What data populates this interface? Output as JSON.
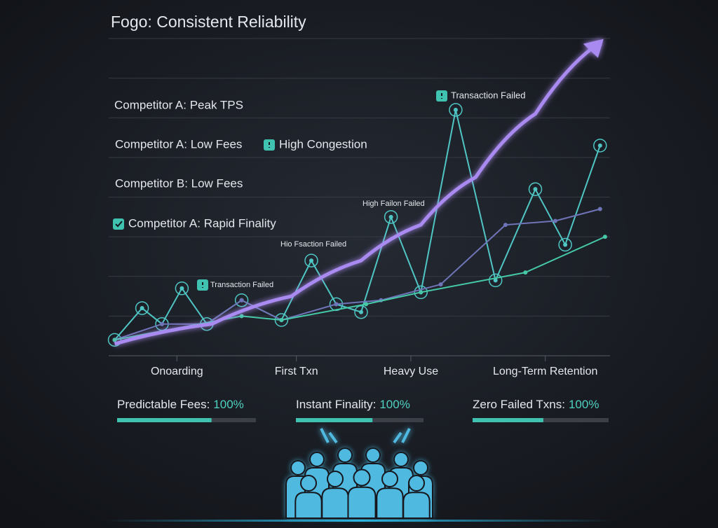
{
  "chart_data": {
    "type": "line",
    "title": "Fogo: Consistent Reliability",
    "xlim": [
      0,
      10
    ],
    "ylim": [
      0,
      8
    ],
    "xticks": [
      {
        "value": 1.3,
        "label": "Onoarding"
      },
      {
        "value": 3.7,
        "label": "First Txn"
      },
      {
        "value": 6,
        "label": "Heavy Use"
      },
      {
        "value": 8.7,
        "label": "Long-Term Retention"
      }
    ],
    "yticks": [
      0,
      1,
      2,
      3,
      4,
      5,
      6,
      7,
      8
    ],
    "grid": true,
    "series": [
      {
        "color": "#4fc6c4",
        "markers": true,
        "x": [
          0.05,
          0.6,
          1,
          1.4,
          1.9,
          2.6,
          3.4,
          4,
          4.5,
          5,
          5.6,
          6.2,
          6.9,
          7.7,
          8.5,
          9.1,
          9.8
        ],
        "values": [
          0.4,
          1.2,
          0.8,
          1.7,
          0.8,
          1.4,
          0.9,
          2.4,
          1.3,
          1.1,
          3.5,
          1.6,
          6.2,
          1.9,
          4.2,
          2.8,
          5.3
        ]
      },
      {
        "color": "#6f74b8",
        "markers": false,
        "x": [
          0.05,
          1,
          1.9,
          2.6,
          3.4,
          4.5,
          5.4,
          6.6,
          7.9,
          8.9,
          9.8
        ],
        "values": [
          0.4,
          0.8,
          0.8,
          1.4,
          0.9,
          1.3,
          1.4,
          1.8,
          3.3,
          3.4,
          3.7
        ]
      },
      {
        "color": "#46c9a8",
        "markers": false,
        "x": [
          0.05,
          2.6,
          3.4,
          5.1,
          6.2,
          8.3,
          9.9
        ],
        "values": [
          0.4,
          1,
          0.9,
          1.3,
          1.6,
          2.1,
          3
        ]
      },
      {
        "color": "#a98af0",
        "markers": false,
        "arrow": true,
        "x": [
          0.05,
          2,
          3.6,
          5,
          6.2,
          7.3,
          8.5,
          9.8
        ],
        "values": [
          0.3,
          0.8,
          1.5,
          2.4,
          3.3,
          4.5,
          6.1,
          7.9
        ]
      }
    ],
    "labels": [
      "Competitor A: Peak TPS",
      "Competitor A: Low Fees",
      "High Congestion",
      "Competitor B: Low Fees",
      "Competitor A: Rapid Finality"
    ],
    "annotations": [
      "Transaction Failed",
      "High Failon Failed",
      "Hio Fsaction Failed",
      "Transaction Failed"
    ],
    "metrics": [
      {
        "label": "Predictable Fees:",
        "value_label": "100%",
        "bar": 68
      },
      {
        "label": "Instant Finality:",
        "value_label": "100%",
        "bar": 60
      },
      {
        "label": "Zero Failed Txns:",
        "value_label": "100%",
        "bar": 52
      }
    ]
  }
}
